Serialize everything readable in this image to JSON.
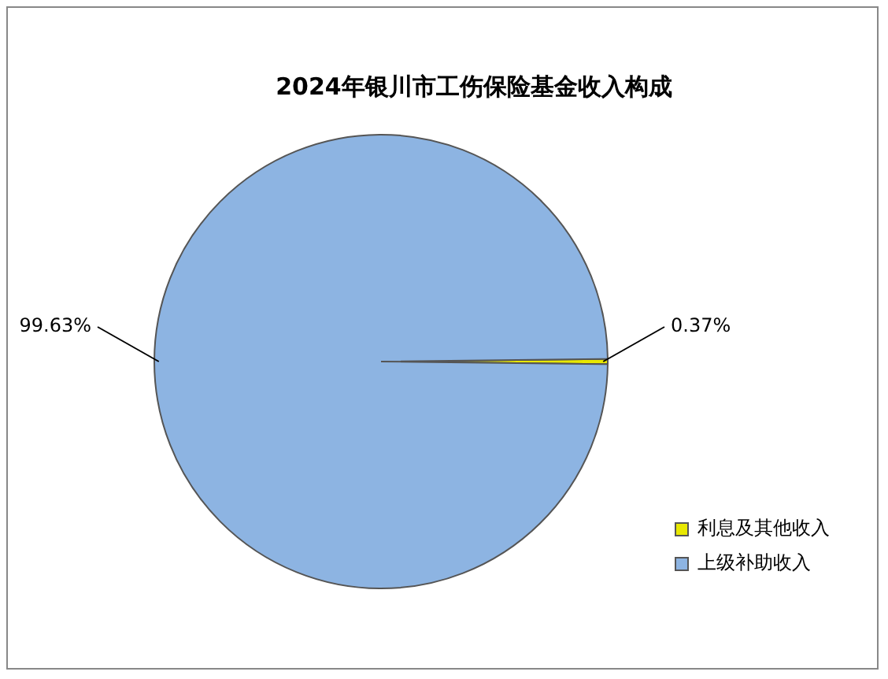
{
  "chart_data": {
    "type": "pie",
    "title": "2024年银川市工伤保险基金收入构成",
    "categories": [
      "利息及其他收入",
      "上级补助收入"
    ],
    "values": [
      0.37,
      99.63
    ],
    "value_labels": [
      "0.37%",
      "99.63%"
    ],
    "colors": [
      "#e8e800",
      "#8db4e2"
    ],
    "legend": "right"
  }
}
